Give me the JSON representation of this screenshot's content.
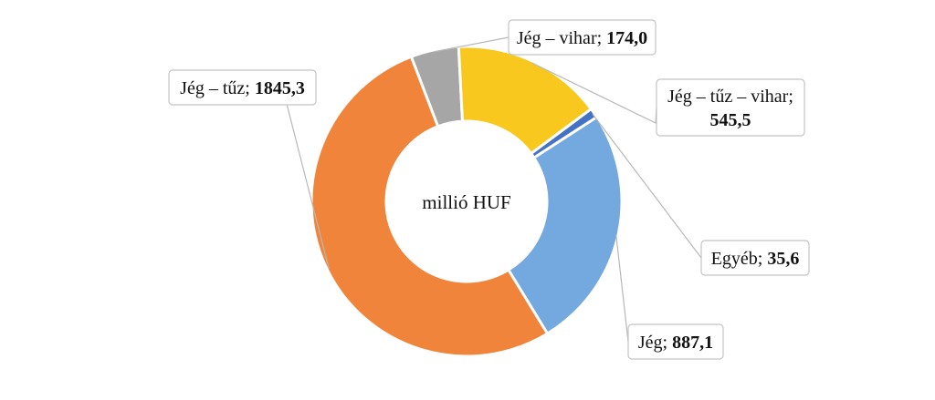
{
  "chart_data": {
    "type": "pie",
    "donut": true,
    "center_label": "millió HUF",
    "slices": [
      {
        "label": "Jég – vihar",
        "value_text": "174,0",
        "value": 174.0,
        "color": "#a6a6a6"
      },
      {
        "label": "Jég – tűz – vihar",
        "value_text": "545,5",
        "value": 545.5,
        "color": "#f9c81f"
      },
      {
        "label": "Egyéb",
        "value_text": "35,6",
        "value": 35.6,
        "color": "#4472c4"
      },
      {
        "label": "Jég",
        "value_text": "887,1",
        "value": 887.1,
        "color": "#74a9df"
      },
      {
        "label": "Jég – tűz",
        "value_text": "1845,3",
        "value": 1845.3,
        "color": "#f0843a"
      }
    ],
    "legend": "none"
  }
}
